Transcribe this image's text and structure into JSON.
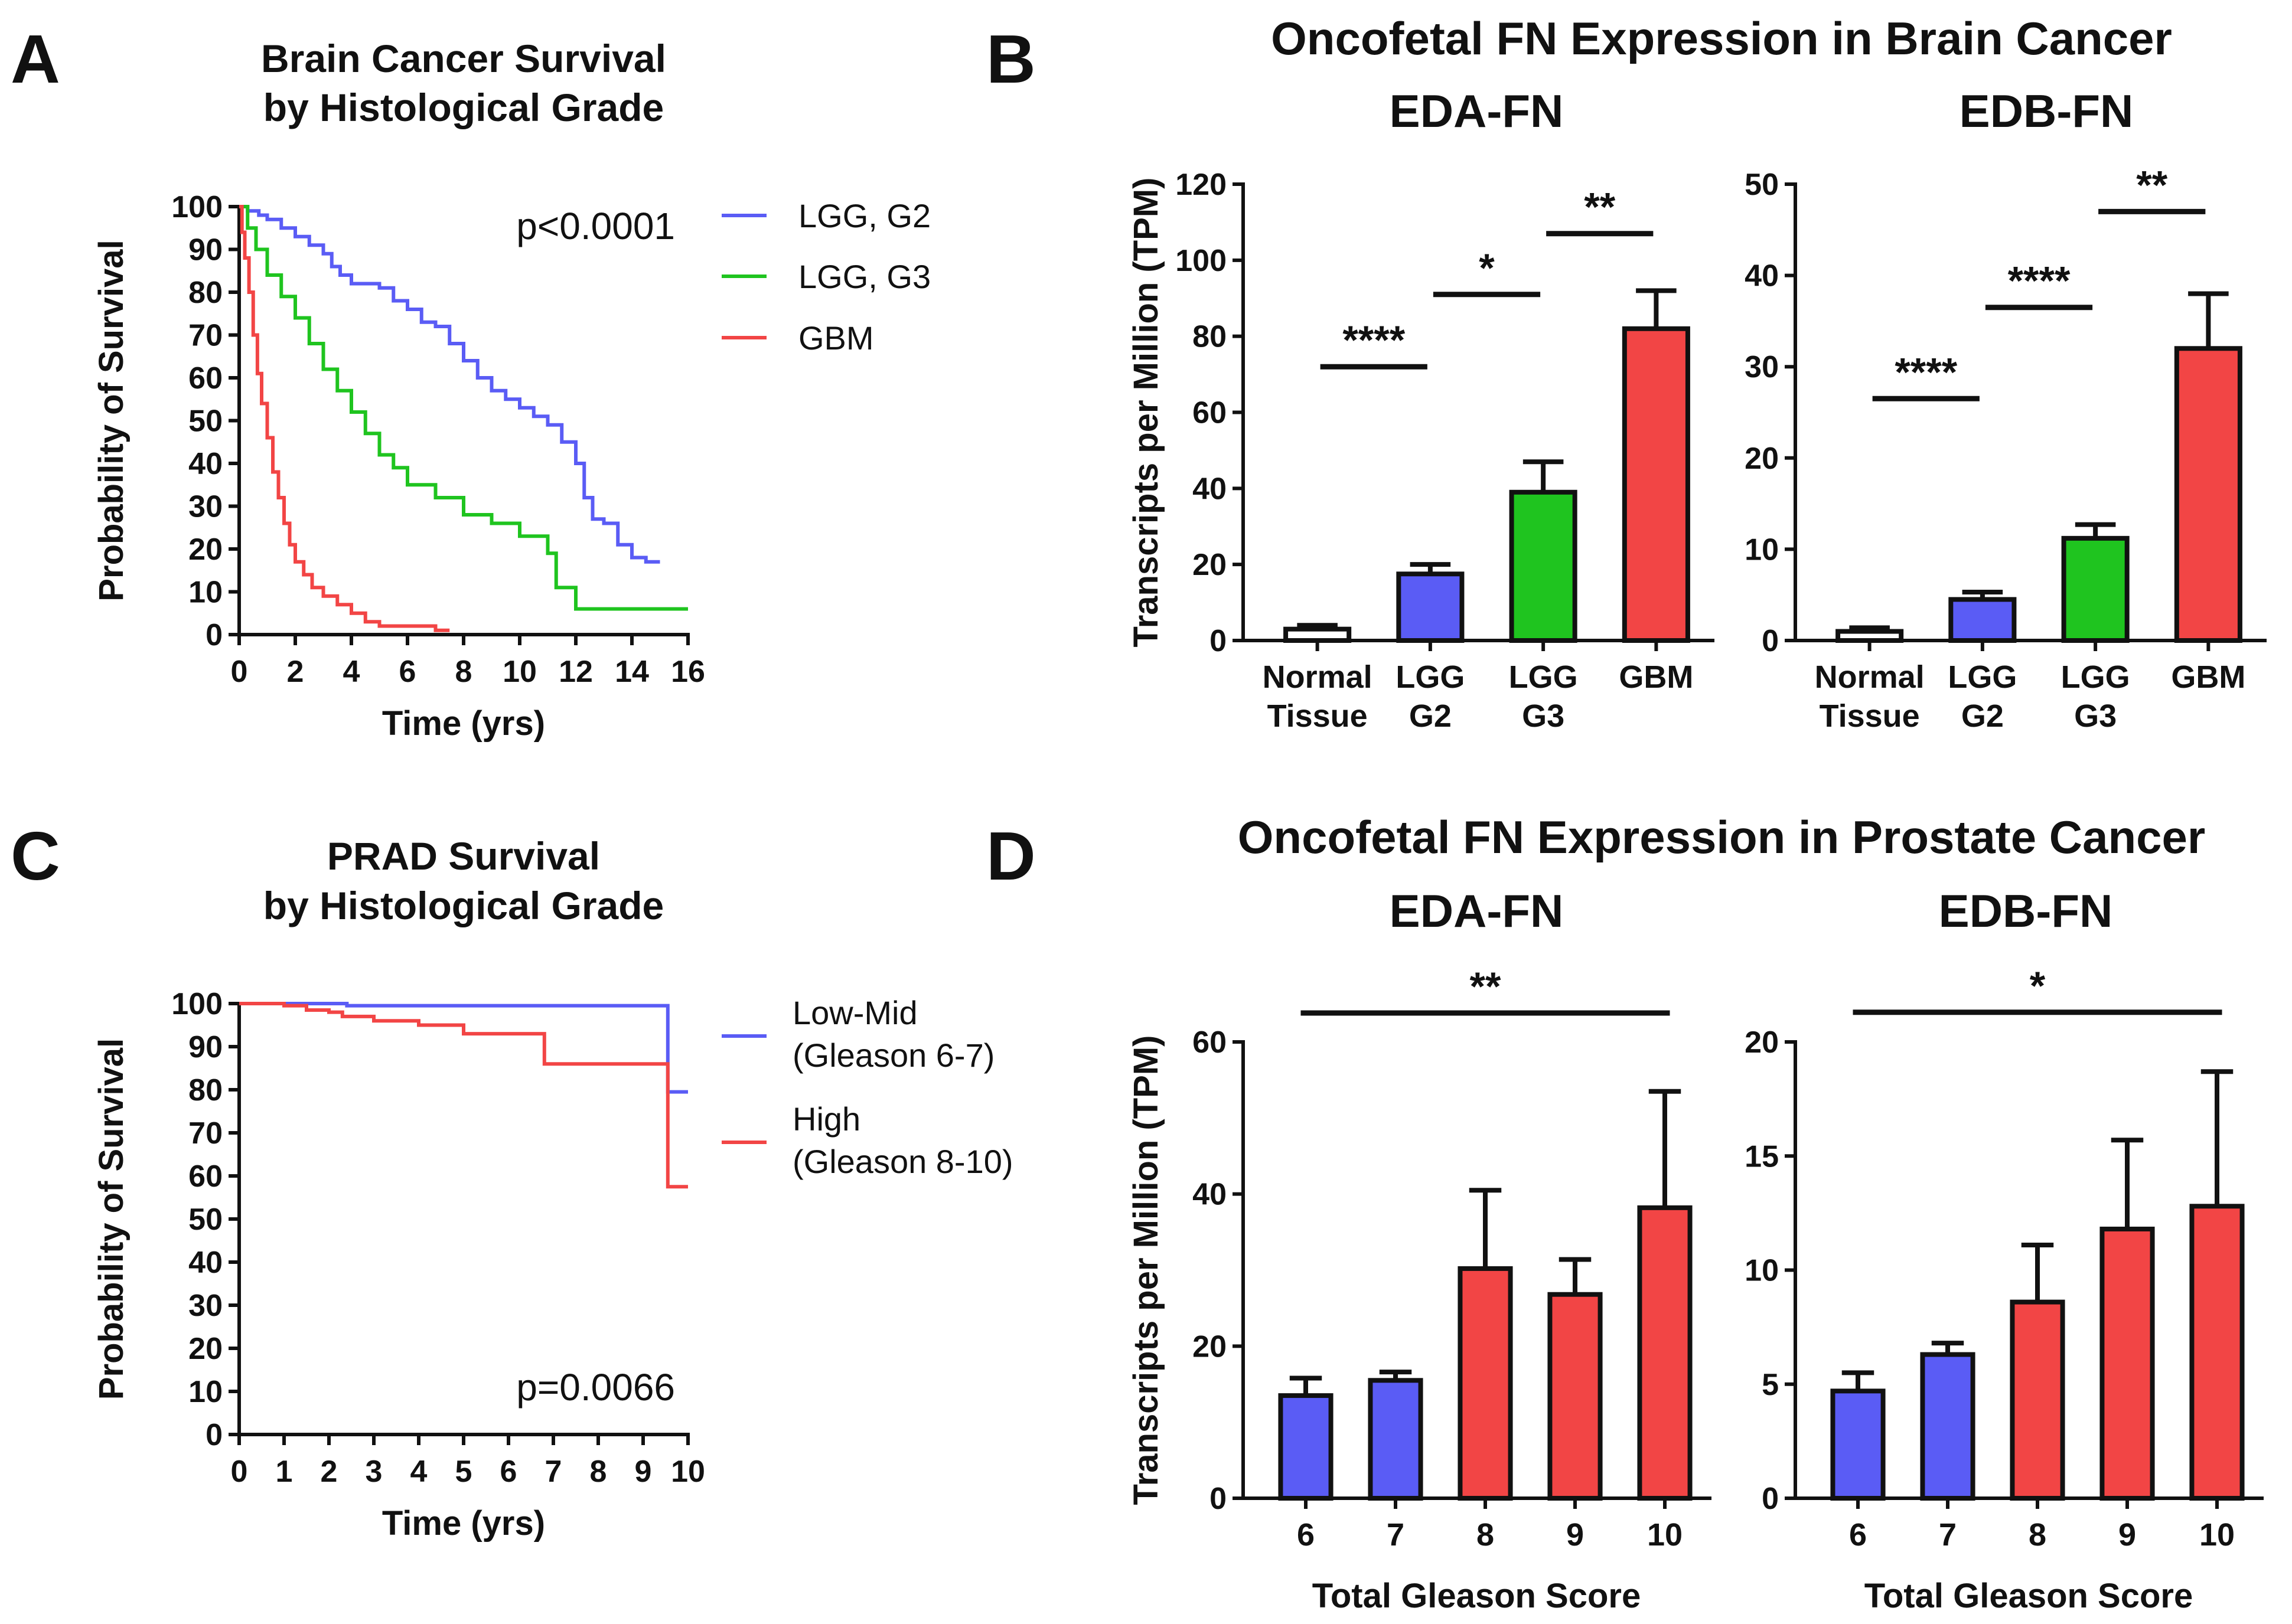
{
  "colors": {
    "blue": "#5a5cf5",
    "green": "#1fc41f",
    "red": "#f24545",
    "white": "#ffffff",
    "axis": "#111111"
  },
  "panels": {
    "A": {
      "letter": "A",
      "title_lines": [
        "Brain Cancer Survival",
        "by Histological Grade"
      ]
    },
    "B": {
      "letter": "B",
      "title": "Oncofetal FN Expression in Brain Cancer"
    },
    "C": {
      "letter": "C",
      "title_lines": [
        "PRAD Survival",
        "by Histological Grade"
      ]
    },
    "D": {
      "letter": "D",
      "title": "Oncofetal FN Expression in Prostate Cancer"
    }
  },
  "chart_data": [
    {
      "id": "A",
      "type": "line",
      "title": "Brain Cancer Survival by Histological Grade",
      "xlabel": "Time (yrs)",
      "ylabel": "Probability of Survival",
      "xlim": [
        0,
        16
      ],
      "ylim": [
        0,
        100
      ],
      "xticks": [
        0,
        2,
        4,
        6,
        8,
        10,
        12,
        14,
        16
      ],
      "yticks": [
        0,
        10,
        20,
        30,
        40,
        50,
        60,
        70,
        80,
        90,
        100
      ],
      "annotation": "p<0.0001",
      "series": [
        {
          "name": "LGG, G2",
          "color": "blue",
          "x": [
            0,
            0.3,
            0.7,
            1,
            1.5,
            2,
            2.5,
            3,
            3.3,
            3.6,
            4,
            5,
            5.5,
            6,
            6.5,
            7,
            7.5,
            8,
            8.5,
            9,
            9.5,
            10,
            10.5,
            11,
            11.5,
            12,
            12.3,
            12.6,
            13,
            13.5,
            14,
            14.5,
            15
          ],
          "y": [
            100,
            99,
            98,
            97,
            95,
            93,
            91,
            89,
            86,
            84,
            82,
            81,
            78,
            76,
            73,
            72,
            68,
            64,
            60,
            57,
            55,
            53,
            51,
            49,
            45,
            40,
            32,
            27,
            26,
            21,
            18,
            17,
            17
          ]
        },
        {
          "name": "LGG, G3",
          "color": "green",
          "x": [
            0,
            0.3,
            0.6,
            1,
            1.5,
            2,
            2.5,
            3,
            3.5,
            4,
            4.5,
            5,
            5.5,
            6,
            7,
            8,
            9,
            10,
            11,
            11.3,
            12,
            13,
            14,
            15,
            16
          ],
          "y": [
            100,
            95,
            90,
            84,
            79,
            74,
            68,
            62,
            57,
            52,
            47,
            42,
            39,
            35,
            32,
            28,
            26,
            23,
            19,
            11,
            6,
            6,
            6,
            6,
            6
          ]
        },
        {
          "name": "GBM",
          "color": "red",
          "x": [
            0,
            0.1,
            0.2,
            0.35,
            0.5,
            0.65,
            0.8,
            1,
            1.2,
            1.4,
            1.6,
            1.8,
            2,
            2.3,
            2.6,
            3,
            3.5,
            4,
            4.5,
            5,
            6,
            7,
            7.5
          ],
          "y": [
            100,
            94,
            88,
            80,
            70,
            61,
            54,
            46,
            38,
            32,
            26,
            21,
            17,
            14,
            11,
            9,
            7,
            5,
            3,
            2,
            2,
            1,
            1
          ]
        }
      ]
    },
    {
      "id": "B1",
      "type": "bar",
      "subtitle": "EDA-FN",
      "ylabel": "Transcripts per Million (TPM)",
      "ylim": [
        0,
        120
      ],
      "yticks": [
        0,
        20,
        40,
        60,
        80,
        100,
        120
      ],
      "categories": [
        [
          "Normal",
          "Tissue"
        ],
        [
          "LGG",
          "G2"
        ],
        [
          "LGG",
          "G3"
        ],
        [
          "GBM",
          ""
        ]
      ],
      "values": [
        3,
        17.5,
        39,
        82
      ],
      "errors": [
        4,
        20,
        47,
        92
      ],
      "colors": [
        "white",
        "blue",
        "green",
        "red"
      ],
      "significance": [
        {
          "from": 0,
          "to": 1,
          "y": 72,
          "label": "****"
        },
        {
          "from": 1,
          "to": 2,
          "y": 91,
          "label": "*"
        },
        {
          "from": 2,
          "to": 3,
          "y": 107,
          "label": "**"
        }
      ]
    },
    {
      "id": "B2",
      "type": "bar",
      "subtitle": "EDB-FN",
      "ylabel": "",
      "ylim": [
        0,
        50
      ],
      "yticks": [
        0,
        10,
        20,
        30,
        40,
        50
      ],
      "categories": [
        [
          "Normal",
          "Tissue"
        ],
        [
          "LGG",
          "G2"
        ],
        [
          "LGG",
          "G3"
        ],
        [
          "GBM",
          ""
        ]
      ],
      "values": [
        1,
        4.5,
        11.2,
        32
      ],
      "errors": [
        1.4,
        5.3,
        12.7,
        38
      ],
      "colors": [
        "white",
        "blue",
        "green",
        "red"
      ],
      "significance": [
        {
          "from": 0,
          "to": 1,
          "y": 26.5,
          "label": "****"
        },
        {
          "from": 1,
          "to": 2,
          "y": 36.5,
          "label": "****"
        },
        {
          "from": 2,
          "to": 3,
          "y": 47,
          "label": "**"
        }
      ]
    },
    {
      "id": "C",
      "type": "line",
      "title": "PRAD Survival by Histological Grade",
      "xlabel": "Time (yrs)",
      "ylabel": "Probability of Survival",
      "xlim": [
        0,
        10
      ],
      "ylim": [
        0,
        100
      ],
      "xticks": [
        0,
        1,
        2,
        3,
        4,
        5,
        6,
        7,
        8,
        9,
        10
      ],
      "yticks": [
        0,
        10,
        20,
        30,
        40,
        50,
        60,
        70,
        80,
        90,
        100
      ],
      "annotation": "p=0.0066",
      "series": [
        {
          "name": "Low-Mid (Gleason 6-7)",
          "label_lines": [
            "Low-Mid",
            "(Gleason 6-7)"
          ],
          "color": "blue",
          "x": [
            0,
            1,
            2.4,
            3,
            5,
            7,
            9.5,
            9.55,
            10
          ],
          "y": [
            100,
            100,
            99.5,
            99.5,
            99.5,
            99.5,
            99.5,
            79.5,
            79.5
          ]
        },
        {
          "name": "High (Gleason 8-10)",
          "label_lines": [
            "High",
            "(Gleason 8-10)"
          ],
          "color": "red",
          "x": [
            0,
            1,
            1.5,
            2,
            2.3,
            3,
            4,
            5,
            6,
            6.8,
            8,
            9,
            9.5,
            9.55,
            10
          ],
          "y": [
            100,
            99.5,
            98.5,
            98,
            97,
            96,
            95,
            93,
            93,
            86,
            86,
            86,
            86,
            57.5,
            57.5
          ]
        }
      ]
    },
    {
      "id": "D1",
      "type": "bar",
      "subtitle": "EDA-FN",
      "ylabel": "Transcripts per Million (TPM)",
      "xlabel": "Total Gleason Score",
      "ylim": [
        0,
        60
      ],
      "yticks": [
        0,
        20,
        40,
        60
      ],
      "categories": [
        [
          "6"
        ],
        [
          "7"
        ],
        [
          "8"
        ],
        [
          "9"
        ],
        [
          "10"
        ]
      ],
      "values": [
        13.5,
        15.5,
        30.2,
        26.8,
        38.2
      ],
      "errors": [
        15.8,
        16.6,
        40.5,
        31.4,
        53.5
      ],
      "colors": [
        "blue",
        "blue",
        "red",
        "red",
        "red"
      ],
      "significance": [
        {
          "from": 0,
          "to": 4,
          "y": 63.8,
          "label": "**"
        }
      ]
    },
    {
      "id": "D2",
      "type": "bar",
      "subtitle": "EDB-FN",
      "ylabel": "",
      "xlabel": "Total Gleason Score",
      "ylim": [
        0,
        20
      ],
      "yticks": [
        0,
        5,
        10,
        15,
        20
      ],
      "categories": [
        [
          "6"
        ],
        [
          "7"
        ],
        [
          "8"
        ],
        [
          "9"
        ],
        [
          "10"
        ]
      ],
      "values": [
        4.7,
        6.3,
        8.6,
        11.8,
        12.8
      ],
      "errors": [
        5.5,
        6.8,
        11.1,
        15.7,
        18.7
      ],
      "colors": [
        "blue",
        "blue",
        "red",
        "red",
        "red"
      ],
      "significance": [
        {
          "from": 0,
          "to": 4,
          "y": 21.3,
          "label": "*"
        }
      ]
    }
  ]
}
